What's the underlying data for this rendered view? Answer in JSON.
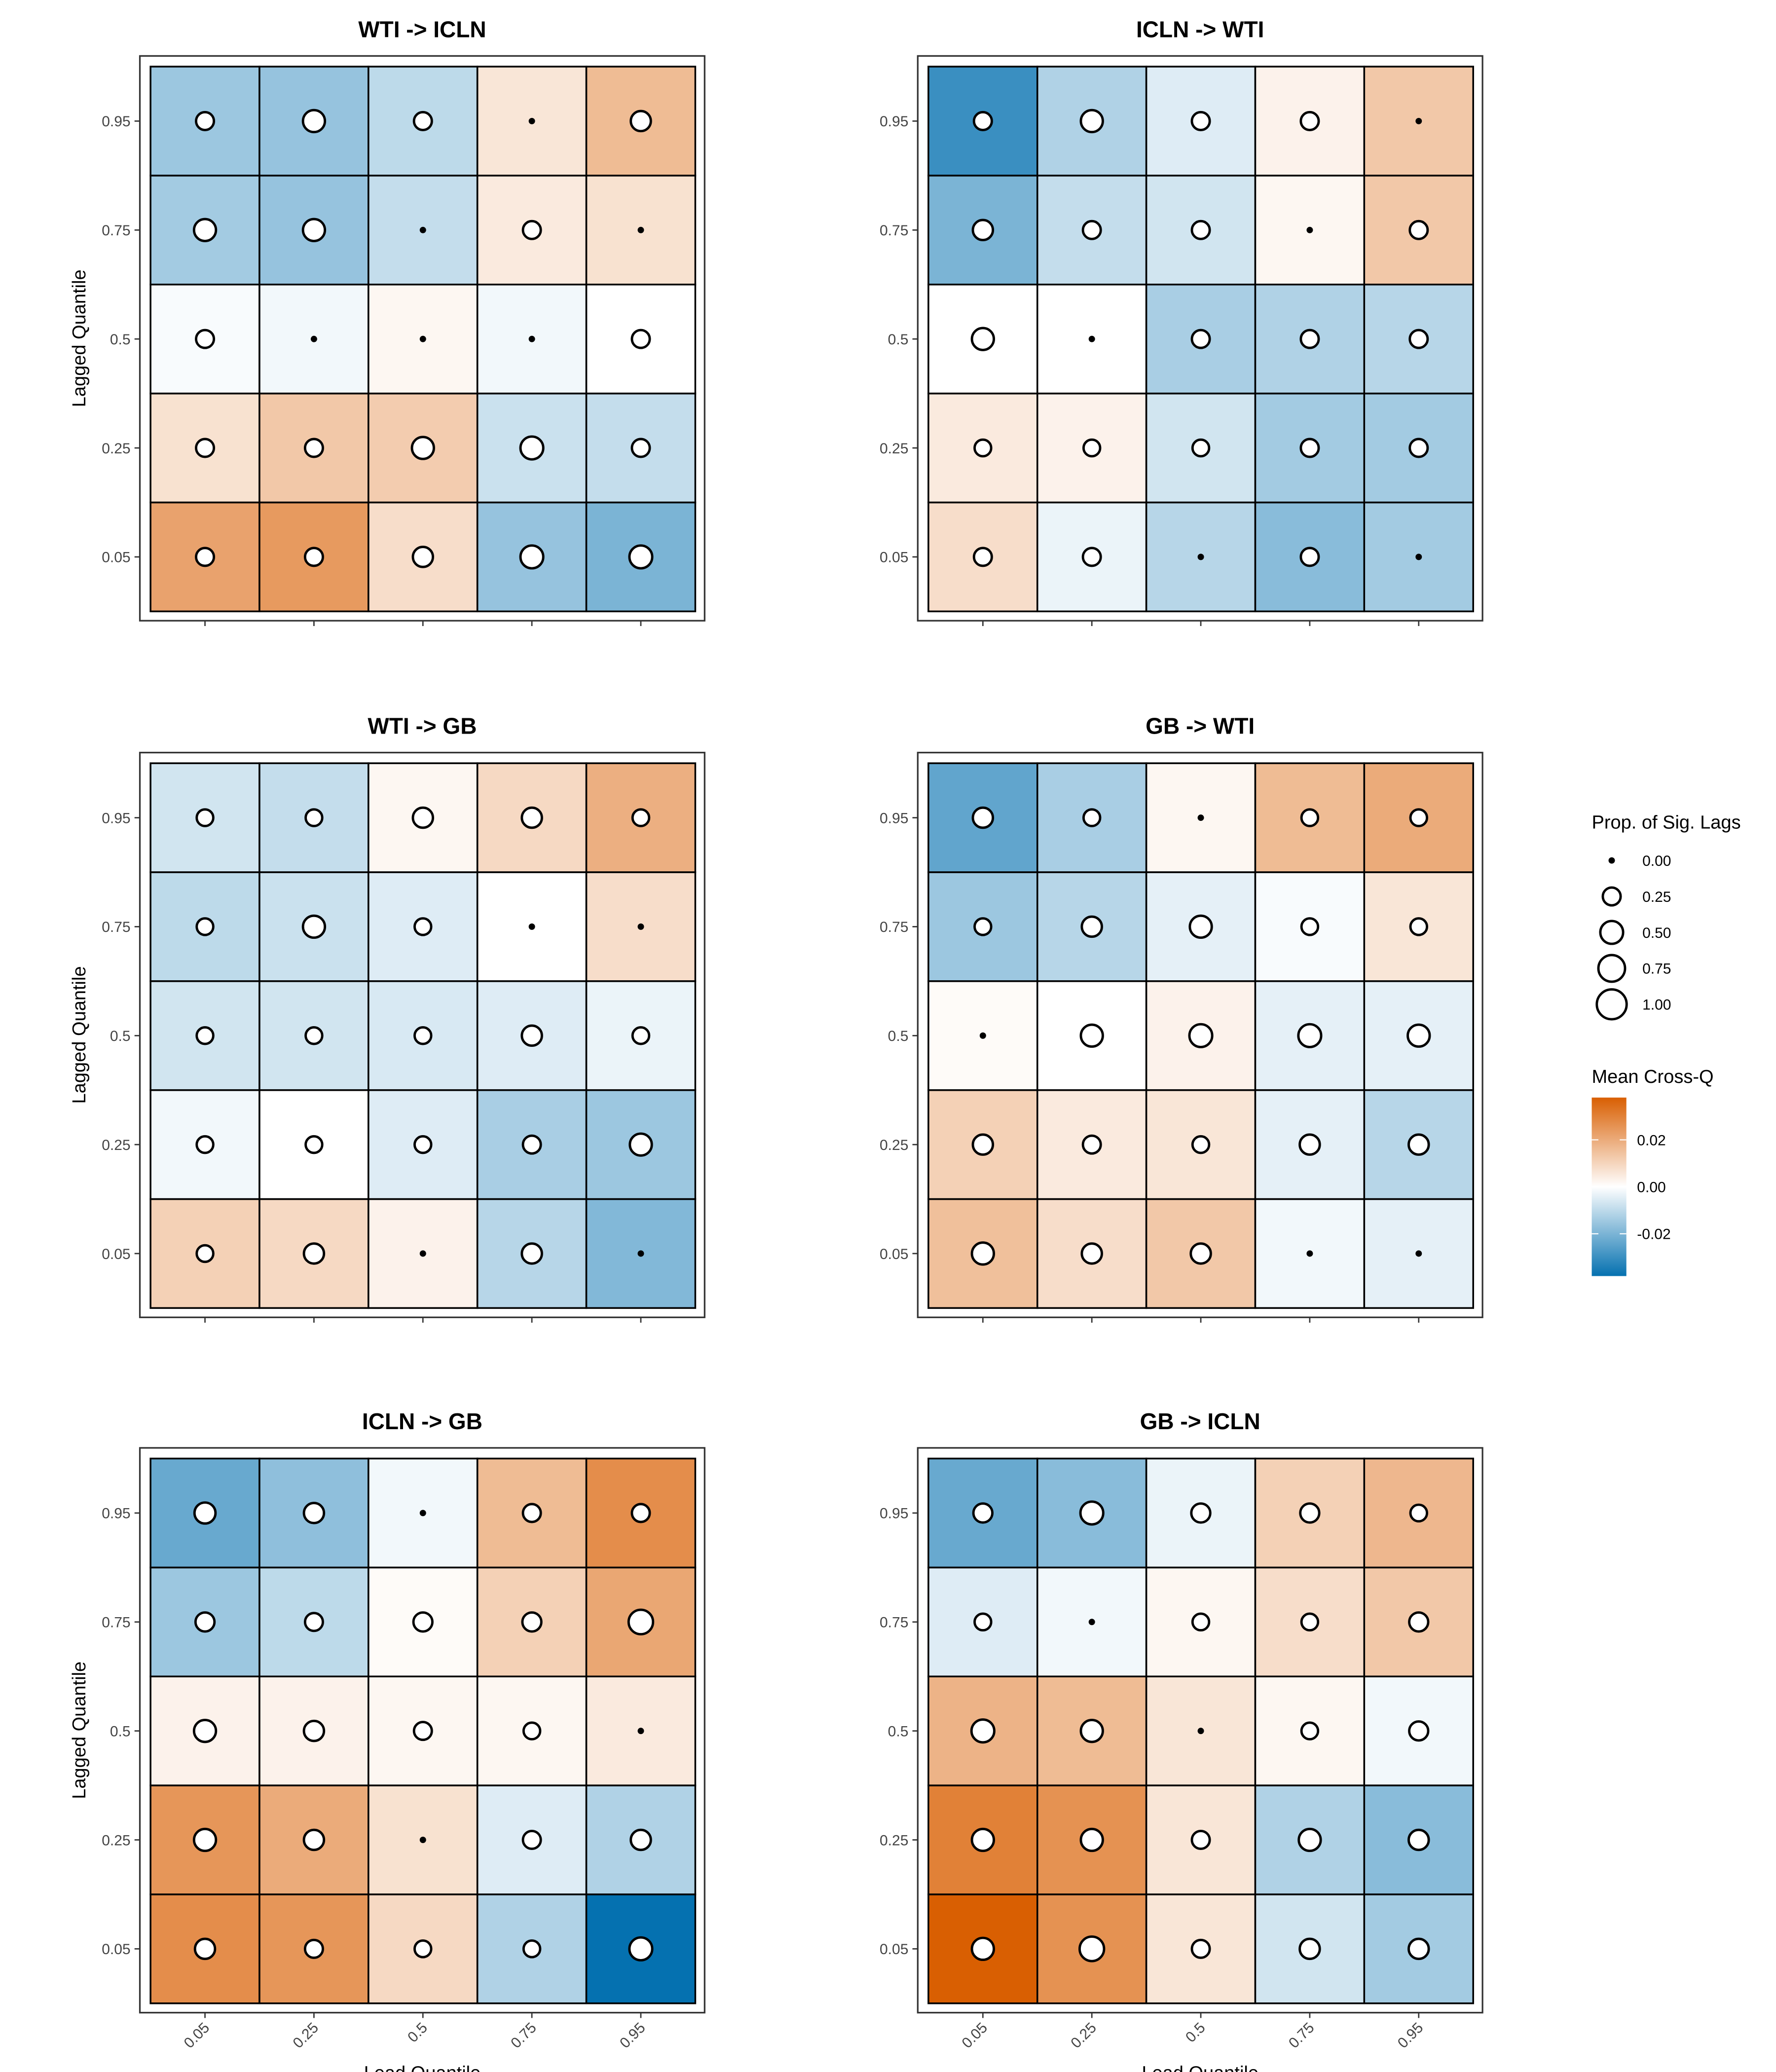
{
  "chart_data": {
    "type": "heatmap",
    "x_axis_label": "Lead Quantile",
    "y_axis_label": "Lagged Quantile",
    "x_ticks": [
      "0.05",
      "0.25",
      "0.5",
      "0.75",
      "0.95"
    ],
    "y_ticks": [
      "0.05",
      "0.25",
      "0.5",
      "0.75",
      "0.95"
    ],
    "legend_size": {
      "title": "Prop. of Sig. Lags",
      "labels": [
        "0.00",
        "0.25",
        "0.50",
        "0.75",
        "1.00"
      ],
      "values": [
        0,
        0.25,
        0.5,
        0.75,
        1.0
      ]
    },
    "legend_color": {
      "title": "Mean Cross-Q",
      "labels": [
        "0.02",
        "0.00",
        "-0.02"
      ],
      "values": [
        0.02,
        0.0,
        -0.02
      ],
      "range": [
        -0.038,
        0.038
      ],
      "low_color": "#0571b0",
      "mid_color": "#ffffff",
      "high_color": "#d95f02"
    },
    "panels": [
      {
        "title": "WTI -> ICLN",
        "values": [
          [
            0.022,
            0.024,
            0.008,
            -0.016,
            -0.02
          ],
          [
            0.007,
            0.013,
            0.012,
            -0.008,
            -0.009
          ],
          [
            -0.001,
            -0.002,
            0.002,
            -0.002,
            0.0
          ],
          [
            -0.014,
            -0.016,
            -0.009,
            0.005,
            0.007
          ],
          [
            -0.015,
            -0.016,
            -0.01,
            0.006,
            0.016
          ]
        ],
        "prop_sig": [
          [
            0.25,
            0.25,
            0.35,
            0.5,
            0.5
          ],
          [
            0.25,
            0.25,
            0.45,
            0.5,
            0.25
          ],
          [
            0.25,
            0.0,
            0.0,
            0.0,
            0.25
          ],
          [
            0.45,
            0.45,
            0.0,
            0.25,
            0.0
          ],
          [
            0.25,
            0.45,
            0.25,
            0.0,
            0.35
          ]
        ]
      },
      {
        "title": "ICLN -> WTI",
        "values": [
          [
            0.008,
            -0.003,
            -0.011,
            -0.018,
            -0.014
          ],
          [
            0.005,
            0.003,
            -0.007,
            -0.014,
            -0.014
          ],
          [
            0.0,
            0.0,
            -0.013,
            -0.012,
            -0.011
          ],
          [
            -0.02,
            -0.009,
            -0.007,
            0.002,
            0.013
          ],
          [
            -0.03,
            -0.012,
            -0.005,
            0.003,
            0.013
          ]
        ],
        "prop_sig": [
          [
            0.25,
            0.25,
            0.0,
            0.25,
            0.0
          ],
          [
            0.2,
            0.2,
            0.2,
            0.25,
            0.25
          ],
          [
            0.45,
            0.0,
            0.25,
            0.25,
            0.25
          ],
          [
            0.35,
            0.25,
            0.25,
            0.0,
            0.25
          ],
          [
            0.25,
            0.45,
            0.25,
            0.25,
            0.0
          ]
        ]
      },
      {
        "title": "WTI -> GB",
        "values": [
          [
            0.011,
            0.009,
            0.003,
            -0.011,
            -0.019
          ],
          [
            -0.002,
            0.0,
            -0.005,
            -0.013,
            -0.015
          ],
          [
            -0.007,
            -0.007,
            -0.006,
            -0.005,
            -0.003
          ],
          [
            -0.01,
            -0.008,
            -0.005,
            0.0,
            0.008
          ],
          [
            -0.007,
            -0.009,
            0.002,
            0.009,
            0.019
          ]
        ],
        "prop_sig": [
          [
            0.2,
            0.35,
            0.0,
            0.35,
            0.0
          ],
          [
            0.2,
            0.2,
            0.2,
            0.25,
            0.45
          ],
          [
            0.2,
            0.2,
            0.2,
            0.35,
            0.2
          ],
          [
            0.2,
            0.45,
            0.2,
            0.0,
            0.0
          ],
          [
            0.2,
            0.2,
            0.35,
            0.35,
            0.2
          ]
        ]
      },
      {
        "title": "GB -> WTI",
        "values": [
          [
            0.015,
            0.008,
            0.013,
            -0.002,
            -0.004
          ],
          [
            0.011,
            0.005,
            0.006,
            -0.004,
            -0.011
          ],
          [
            0.001,
            0.0,
            0.003,
            -0.004,
            -0.004
          ],
          [
            -0.015,
            -0.011,
            -0.004,
            -0.001,
            0.006
          ],
          [
            -0.024,
            -0.013,
            0.002,
            0.016,
            0.02
          ]
        ],
        "prop_sig": [
          [
            0.45,
            0.35,
            0.35,
            0.0,
            0.0
          ],
          [
            0.35,
            0.25,
            0.2,
            0.35,
            0.35
          ],
          [
            0.0,
            0.45,
            0.5,
            0.5,
            0.45
          ],
          [
            0.2,
            0.35,
            0.45,
            0.2,
            0.2
          ],
          [
            0.35,
            0.2,
            0.0,
            0.2,
            0.2
          ]
        ]
      },
      {
        "title": "ICLN -> GB",
        "values": [
          [
            0.027,
            0.025,
            0.009,
            -0.012,
            -0.038
          ],
          [
            0.025,
            0.02,
            0.007,
            -0.005,
            -0.012
          ],
          [
            0.003,
            0.003,
            0.002,
            0.002,
            0.005
          ],
          [
            -0.015,
            -0.01,
            0.001,
            0.011,
            0.021
          ],
          [
            -0.023,
            -0.017,
            -0.002,
            0.016,
            0.027
          ]
        ],
        "prop_sig": [
          [
            0.35,
            0.25,
            0.2,
            0.2,
            0.5
          ],
          [
            0.45,
            0.35,
            0.0,
            0.25,
            0.35
          ],
          [
            0.45,
            0.35,
            0.25,
            0.2,
            0.0
          ],
          [
            0.3,
            0.25,
            0.3,
            0.3,
            0.6
          ],
          [
            0.4,
            0.35,
            0.0,
            0.25,
            0.25
          ]
        ]
      },
      {
        "title": "GB -> ICLN",
        "values": [
          [
            0.038,
            0.026,
            0.006,
            -0.007,
            -0.014
          ],
          [
            0.03,
            0.026,
            0.006,
            -0.012,
            -0.018
          ],
          [
            0.018,
            0.016,
            0.006,
            0.002,
            -0.002
          ],
          [
            -0.005,
            -0.002,
            0.002,
            0.008,
            0.013
          ],
          [
            -0.023,
            -0.018,
            -0.003,
            0.011,
            0.017
          ]
        ],
        "prop_sig": [
          [
            0.45,
            0.6,
            0.25,
            0.35,
            0.35
          ],
          [
            0.45,
            0.45,
            0.25,
            0.45,
            0.35
          ],
          [
            0.5,
            0.45,
            0.0,
            0.2,
            0.3
          ],
          [
            0.2,
            0.0,
            0.2,
            0.2,
            0.3
          ],
          [
            0.3,
            0.5,
            0.3,
            0.3,
            0.2
          ]
        ]
      }
    ]
  }
}
